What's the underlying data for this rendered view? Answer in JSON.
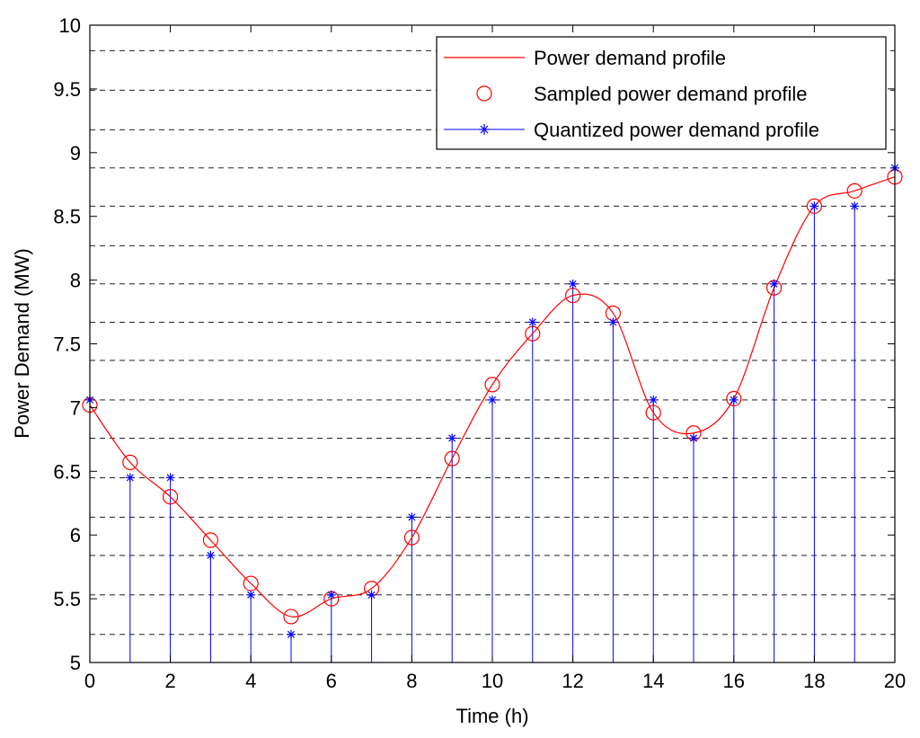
{
  "chart_data": {
    "type": "line",
    "title": "",
    "xlabel": "Time (h)",
    "ylabel": "Power Demand (MW)",
    "xlim": [
      0,
      20
    ],
    "ylim": [
      5,
      10
    ],
    "xticks": [
      0,
      2,
      4,
      6,
      8,
      10,
      12,
      14,
      16,
      18,
      20
    ],
    "yticks": [
      5,
      5.5,
      6,
      6.5,
      7,
      7.5,
      8,
      8.5,
      9,
      9.5,
      10
    ],
    "quantization_levels": [
      5.22,
      5.53,
      5.84,
      6.14,
      6.45,
      6.76,
      7.06,
      7.37,
      7.67,
      7.97,
      8.27,
      8.58,
      8.88,
      9.18,
      9.49,
      9.8
    ],
    "legend_position": "top-right",
    "series": [
      {
        "name": "Power demand profile",
        "kind": "line",
        "color": "#ff0000",
        "x": [
          0,
          1,
          2,
          3,
          4,
          5,
          6,
          7,
          8,
          9,
          10,
          11,
          12,
          13,
          14,
          15,
          16,
          17,
          18,
          19,
          20
        ],
        "values": [
          7.02,
          6.57,
          6.3,
          5.96,
          5.62,
          5.36,
          5.5,
          5.58,
          5.98,
          6.6,
          7.18,
          7.58,
          7.88,
          7.74,
          6.96,
          6.8,
          7.07,
          7.94,
          8.58,
          8.7,
          8.81
        ]
      },
      {
        "name": "Sampled power demand profile",
        "kind": "marker-circle",
        "color": "#ff0000",
        "x": [
          0,
          1,
          2,
          3,
          4,
          5,
          6,
          7,
          8,
          9,
          10,
          11,
          12,
          13,
          14,
          15,
          16,
          17,
          18,
          19,
          20
        ],
        "values": [
          7.02,
          6.57,
          6.3,
          5.96,
          5.62,
          5.36,
          5.5,
          5.58,
          5.98,
          6.6,
          7.18,
          7.58,
          7.88,
          7.74,
          6.96,
          6.8,
          7.07,
          7.94,
          8.58,
          8.7,
          8.81
        ]
      },
      {
        "name": "Quantized power demand profile",
        "kind": "stem-star",
        "color": "#0000ff",
        "x": [
          0,
          1,
          2,
          3,
          4,
          5,
          6,
          7,
          8,
          9,
          10,
          11,
          12,
          13,
          14,
          15,
          16,
          17,
          18,
          19,
          20
        ],
        "values": [
          7.06,
          6.45,
          6.45,
          5.84,
          5.53,
          5.22,
          5.53,
          5.53,
          6.14,
          6.76,
          7.06,
          7.67,
          7.97,
          7.67,
          7.06,
          6.76,
          7.06,
          7.97,
          8.58,
          8.58,
          8.88
        ]
      }
    ]
  }
}
